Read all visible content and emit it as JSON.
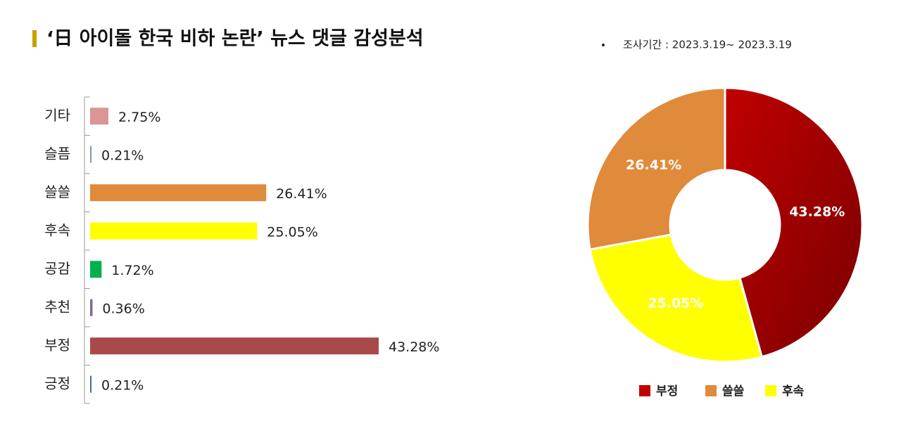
{
  "title": "‘日 아이돌 한국 비하 논란’ 뉴스 댓글 감성분석",
  "period": "조사기간 : 2023.3.19~ 2023.3.19",
  "chart_data": [
    {
      "type": "bar",
      "orientation": "horizontal",
      "categories": [
        "기타",
        "슬픔",
        "쓸쓸",
        "후속",
        "공감",
        "추천",
        "부정",
        "긍정"
      ],
      "values": [
        2.75,
        0.21,
        26.41,
        25.05,
        1.72,
        0.36,
        43.28,
        0.21
      ],
      "value_labels": [
        "2.75%",
        "0.21%",
        "26.41%",
        "25.05%",
        "1.72%",
        "0.36%",
        "43.28%",
        "0.21%"
      ],
      "colors": [
        "#d99694",
        "#8497b0",
        "#e08a3c",
        "#ffff00",
        "#00b050",
        "#8064a2",
        "#a94a4a",
        "#4a6aa0"
      ]
    },
    {
      "type": "donut",
      "categories": [
        "부정",
        "쓸쓸",
        "후속"
      ],
      "values": [
        43.28,
        26.41,
        25.05
      ],
      "value_labels": [
        "43.28%",
        "26.41%",
        "25.05%"
      ],
      "colors": [
        "#c00000",
        "#e08a3c",
        "#ffff00"
      ],
      "legend": "bottom"
    }
  ]
}
